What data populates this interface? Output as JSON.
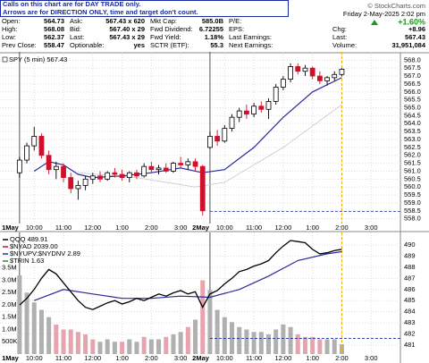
{
  "header": {
    "notice": [
      "Calls on this chart are for DAY TRADE only.",
      "Arrows are for DIRECTION ONLY, time and target don't count."
    ],
    "quote": [
      [
        {
          "label": "Open:",
          "value": "564.73"
        },
        {
          "label": "High:",
          "value": "568.08"
        },
        {
          "label": "Low:",
          "value": "562.37"
        },
        {
          "label": "Prev Close:",
          "value": "558.47"
        }
      ],
      [
        {
          "label": "Ask:",
          "value": "567.43 x 620"
        },
        {
          "label": "Bid:",
          "value": "567.40 x 29"
        },
        {
          "label": "Last:",
          "value": "567.43 x 29"
        },
        {
          "label": "Optionable:",
          "value": "yes"
        }
      ],
      [
        {
          "label": "Mkt Cap:",
          "value": "585.0B"
        },
        {
          "label": "Fwd Dividend:",
          "value": "6.72255"
        },
        {
          "label": "Fwd Yield:",
          "value": "1.18%"
        },
        {
          "label": "SCTR (ETF):",
          "value": "55.3"
        }
      ],
      [
        {
          "label": "P/E:"
        },
        {
          "label": "EPS:"
        },
        {
          "label": "Last Earnings:"
        },
        {
          "label": "Next Earnings:"
        }
      ]
    ],
    "credit": "© StockCharts.com",
    "date": "Friday 2-May-2025  2:02 pm",
    "change_pct": "+1.60%",
    "stats": [
      {
        "label": "Chg:",
        "value": "+8.96"
      },
      {
        "label": "Last:",
        "value": "567.43"
      },
      {
        "label": "Volume:",
        "value": "31,951,084"
      }
    ]
  },
  "chart_data": [
    {
      "type": "candlestick",
      "legend": "SPY (5 min) 567.43",
      "x": [
        0,
        3,
        6,
        9,
        12,
        15,
        18,
        21,
        24,
        27,
        30,
        33,
        36,
        39,
        42,
        45,
        48,
        51,
        54,
        57,
        60,
        63,
        66,
        69,
        72,
        75,
        78,
        81,
        84,
        87,
        90,
        93,
        96,
        99,
        102,
        105,
        108,
        111,
        114,
        117,
        120,
        123,
        126,
        129,
        132
      ],
      "open": [
        560.9,
        561.7,
        562.6,
        563.2,
        562.0,
        561.1,
        561.3,
        560.6,
        559.9,
        560.1,
        560.5,
        560.7,
        560.5,
        560.9,
        560.8,
        560.6,
        560.9,
        560.7,
        561.3,
        561.1,
        561.2,
        561.0,
        561.5,
        561.4,
        561.6,
        561.3,
        562.5,
        563.2,
        562.9,
        563.7,
        564.4,
        564.8,
        564.6,
        565.1,
        564.9,
        565.4,
        566.3,
        566.8,
        567.6,
        567.3,
        567.5,
        567.0,
        566.7,
        566.9,
        567.1
      ],
      "high": [
        561.9,
        562.8,
        563.8,
        563.4,
        562.3,
        561.6,
        561.5,
        560.9,
        560.4,
        560.7,
        560.9,
        561.0,
        561.0,
        561.2,
        561.1,
        561.0,
        561.1,
        561.5,
        561.6,
        561.4,
        561.5,
        561.6,
        561.9,
        561.8,
        561.8,
        561.4,
        563.5,
        563.6,
        563.9,
        564.6,
        565.0,
        565.2,
        565.3,
        565.4,
        565.6,
        566.5,
        567.0,
        567.8,
        567.8,
        567.7,
        567.6,
        567.3,
        567.0,
        567.3,
        567.5
      ],
      "low": [
        560.6,
        561.5,
        562.3,
        561.8,
        560.8,
        560.5,
        560.3,
        559.6,
        559.2,
        559.8,
        560.2,
        560.3,
        560.4,
        560.6,
        560.4,
        560.3,
        560.5,
        560.6,
        560.9,
        560.8,
        560.9,
        560.9,
        561.2,
        561.1,
        561.0,
        558.2,
        562.4,
        562.6,
        562.8,
        563.5,
        564.1,
        564.3,
        564.4,
        564.7,
        564.3,
        565.2,
        566.1,
        566.6,
        567.1,
        567.0,
        566.8,
        566.5,
        566.4,
        566.7,
        567.0
      ],
      "close": [
        561.7,
        562.6,
        563.2,
        562.0,
        561.1,
        561.3,
        560.6,
        559.9,
        560.1,
        560.5,
        560.7,
        560.5,
        560.9,
        560.8,
        560.6,
        560.9,
        560.7,
        561.3,
        561.1,
        561.2,
        561.0,
        561.5,
        561.4,
        561.6,
        561.3,
        558.5,
        563.2,
        562.9,
        563.7,
        564.4,
        564.8,
        564.6,
        565.1,
        564.9,
        565.4,
        566.3,
        566.8,
        567.6,
        567.3,
        567.5,
        567.0,
        566.7,
        566.9,
        567.1,
        567.43
      ],
      "up_color": "#000000",
      "down_color": "#d0102a",
      "ma": {
        "x": [
          6,
          12,
          18,
          24,
          30,
          42,
          54,
          66,
          75,
          84,
          96,
          108,
          120,
          132
        ],
        "values": [
          561.0,
          561.6,
          561.4,
          560.8,
          560.6,
          560.7,
          560.9,
          561.2,
          560.9,
          561.1,
          562.5,
          564.4,
          566.0,
          566.9
        ],
        "color": "#2a2a9a"
      },
      "ma2": {
        "x": [
          24,
          48,
          72,
          84,
          108,
          132
        ],
        "values": [
          560.9,
          560.6,
          560.0,
          560.3,
          562.5,
          565.2
        ],
        "color": "#c8c8c8"
      },
      "ref_line": {
        "value": 558.47,
        "color": "#1a2aa0"
      },
      "now_line": {
        "x": 132,
        "color": "#f0b000"
      },
      "xlim": [
        -8,
        156
      ],
      "ylim": [
        557.7,
        568.3
      ],
      "yticks": [
        {
          "value": 558,
          "label": "558.0"
        },
        558.5,
        {
          "value": 559,
          "label": "559.0"
        },
        559.5,
        {
          "value": 560,
          "label": "560.0"
        },
        560.5,
        {
          "value": 561,
          "label": "561.0"
        },
        561.5,
        {
          "value": 562,
          "label": "562.0"
        },
        562.5,
        {
          "value": 563,
          "label": "563.0"
        },
        563.5,
        {
          "value": 564,
          "label": "564.0"
        },
        564.5,
        {
          "value": 565,
          "label": "565.0"
        },
        565.5,
        {
          "value": 566,
          "label": "566.0"
        },
        566.5,
        {
          "value": 567,
          "label": "567.0"
        },
        567.5,
        {
          "value": 568,
          "label": "568.0"
        }
      ],
      "xticks": [
        {
          "value": 0,
          "label": "1May"
        },
        {
          "value": 6,
          "label": "10:00"
        },
        {
          "value": 18,
          "label": "11:00"
        },
        {
          "value": 30,
          "label": "12:00"
        },
        {
          "value": 42,
          "label": "1:00"
        },
        {
          "value": 54,
          "label": "2:00"
        },
        {
          "value": 66,
          "label": "3:00"
        },
        {
          "value": 78,
          "label": "2May"
        },
        {
          "value": 84,
          "label": "10:00"
        },
        {
          "value": 96,
          "label": "11:00"
        },
        {
          "value": 108,
          "label": "12:00"
        },
        {
          "value": 120,
          "label": "1:00"
        },
        {
          "value": 132,
          "label": "2:00"
        },
        {
          "value": 144,
          "label": "3:00"
        }
      ],
      "grid": true
    },
    {
      "type": "indicator",
      "legend": [
        {
          "name": "QQQ 489.91",
          "color": "#000000"
        },
        {
          "name": "$NYAD 2039.00",
          "color": "#d0102a"
        },
        {
          "name": "$NYUPV:$NYDNV 2.89",
          "color": "#2a2a9a"
        },
        {
          "name": "$TRIN 1.63",
          "color": "#2a8a2a"
        }
      ],
      "x": [
        0,
        3,
        6,
        9,
        12,
        15,
        18,
        21,
        24,
        27,
        30,
        33,
        36,
        39,
        42,
        45,
        48,
        51,
        54,
        57,
        60,
        63,
        66,
        69,
        72,
        75,
        78,
        81,
        84,
        87,
        90,
        93,
        96,
        99,
        102,
        105,
        108,
        111,
        114,
        117,
        120,
        123,
        126,
        129,
        132
      ],
      "qqq": [
        484.6,
        485.2,
        486.0,
        487.0,
        487.8,
        487.4,
        486.6,
        485.8,
        485.0,
        484.4,
        484.2,
        484.5,
        484.8,
        485.0,
        484.7,
        484.9,
        485.2,
        485.0,
        485.3,
        485.6,
        485.4,
        485.7,
        485.9,
        485.6,
        485.8,
        484.4,
        485.6,
        485.9,
        486.5,
        487.0,
        487.6,
        487.8,
        488.1,
        488.3,
        488.6,
        489.3,
        489.9,
        490.4,
        490.3,
        490.2,
        489.6,
        489.2,
        489.3,
        489.5,
        489.6
      ],
      "qqq_color": "#000000",
      "ma": {
        "x": [
          6,
          18,
          30,
          42,
          54,
          66,
          78,
          90,
          102,
          114,
          126,
          132
        ],
        "values": [
          485.0,
          486.0,
          485.6,
          485.2,
          485.2,
          485.4,
          485.3,
          486.0,
          487.2,
          488.6,
          489.2,
          489.4
        ],
        "color": "#2a2a9a"
      },
      "volume": [
        3200000,
        2500000,
        2100000,
        1800000,
        1500000,
        1200000,
        1000000,
        1000000,
        900000,
        800000,
        600000,
        500000,
        600000,
        500000,
        500000,
        600000,
        500000,
        700000,
        600000,
        600000,
        700000,
        800000,
        900000,
        1100000,
        1400000,
        3000000,
        2600000,
        1800000,
        1500000,
        1300000,
        1100000,
        1000000,
        900000,
        900000,
        800000,
        1000000,
        1200000,
        1100000,
        800000,
        700000,
        700000,
        600000,
        600000,
        600000,
        400000
      ],
      "up_color": "#b0b0b0",
      "down_color": "#e8a4ae",
      "ref_line": {
        "value": 481.6,
        "color": "#1a2aa0"
      },
      "now_line": {
        "x": 132,
        "color": "#f0b000"
      },
      "xlim": [
        -8,
        156
      ],
      "ylim": [
        480.2,
        490.8
      ],
      "vlim": [
        0,
        4800000
      ],
      "yticks": [
        481,
        482,
        483,
        484,
        485,
        486,
        487,
        488,
        489,
        490
      ],
      "vticks": [
        {
          "value": 500000,
          "label": "500K"
        },
        {
          "value": 1000000,
          "label": "1.0M"
        },
        {
          "value": 1500000,
          "label": "1.5M"
        },
        {
          "value": 2000000,
          "label": "2.0M"
        },
        {
          "value": 2500000,
          "label": "2.5M"
        },
        {
          "value": 3000000,
          "label": "3.0M"
        },
        {
          "value": 3500000,
          "label": "3.5M"
        }
      ],
      "xticks": [
        {
          "value": 0,
          "label": "1May"
        },
        {
          "value": 6,
          "label": "10:00"
        },
        {
          "value": 18,
          "label": "11:00"
        },
        {
          "value": 30,
          "label": "12:00"
        },
        {
          "value": 42,
          "label": "1:00"
        },
        {
          "value": 54,
          "label": "2:00"
        },
        {
          "value": 66,
          "label": "3:00"
        },
        {
          "value": 78,
          "label": "2May"
        },
        {
          "value": 84,
          "label": "10:00"
        },
        {
          "value": 96,
          "label": "11:00"
        },
        {
          "value": 108,
          "label": "12:00"
        },
        {
          "value": 120,
          "label": "1:00"
        },
        {
          "value": 132,
          "label": "2:00"
        },
        {
          "value": 144,
          "label": "3:00"
        }
      ],
      "grid": true
    }
  ]
}
